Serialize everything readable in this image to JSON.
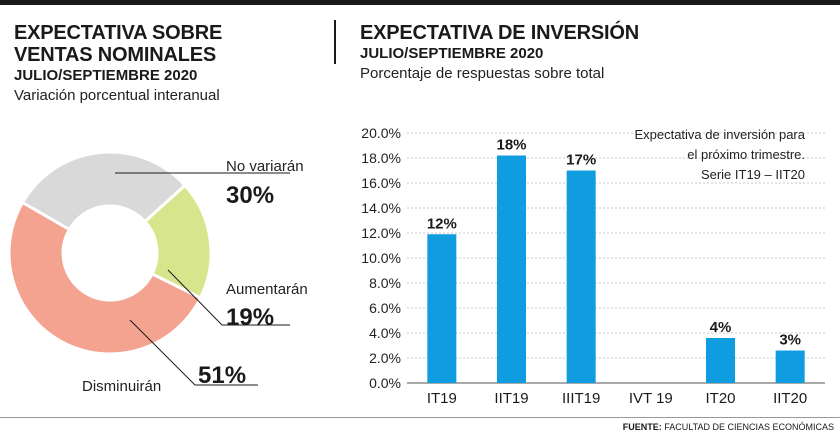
{
  "left": {
    "title_line1": "EXPECTATIVA SOBRE",
    "title_line2": "VENTAS NOMINALES",
    "period": "JULIO/SEPTIEMBRE 2020",
    "description": "Variación porcentual interanual"
  },
  "right": {
    "title": "EXPECTATIVA DE INVERSIÓN",
    "period": "JULIO/SEPTIEMBRE 2020",
    "description": "Porcentaje de respuestas sobre total",
    "note_line1": "Expectativa de inversión para",
    "note_line2": "el próximo trimestre.",
    "note_line3": "Serie IT19 – IIT20"
  },
  "footer": {
    "label": "FUENTE:",
    "source": "FACULTAD DE CIENCIAS ECONÓMICAS"
  },
  "chart_data": [
    {
      "type": "pie",
      "title": "EXPECTATIVA SOBRE VENTAS NOMINALES",
      "slices": [
        {
          "label": "No variarán",
          "value": 30,
          "display": "30%",
          "color": "#d9d9d9"
        },
        {
          "label": "Aumentarán",
          "value": 19,
          "display": "19%",
          "color": "#d7e68c"
        },
        {
          "label": "Disminuirán",
          "value": 51,
          "display": "51%",
          "color": "#f4a391"
        }
      ]
    },
    {
      "type": "bar",
      "title": "EXPECTATIVA DE INVERSIÓN",
      "categories": [
        "IT19",
        "IIT19",
        "IIIT19",
        "IVT 19",
        "IT20",
        "IIT20"
      ],
      "values": [
        11.9,
        18.2,
        17.0,
        null,
        3.6,
        2.6
      ],
      "data_labels": [
        "12%",
        "18%",
        "17%",
        "",
        "4%",
        "3%"
      ],
      "yticks": [
        "0.0%",
        "2.0%",
        "4.0%",
        "6.0%",
        "8.0%",
        "10.0%",
        "12.0%",
        "14.0%",
        "16.0%",
        "18.0%",
        "20.0%"
      ],
      "ylim": [
        0,
        20
      ],
      "grid": true,
      "bar_color": "#0f9de0"
    }
  ]
}
